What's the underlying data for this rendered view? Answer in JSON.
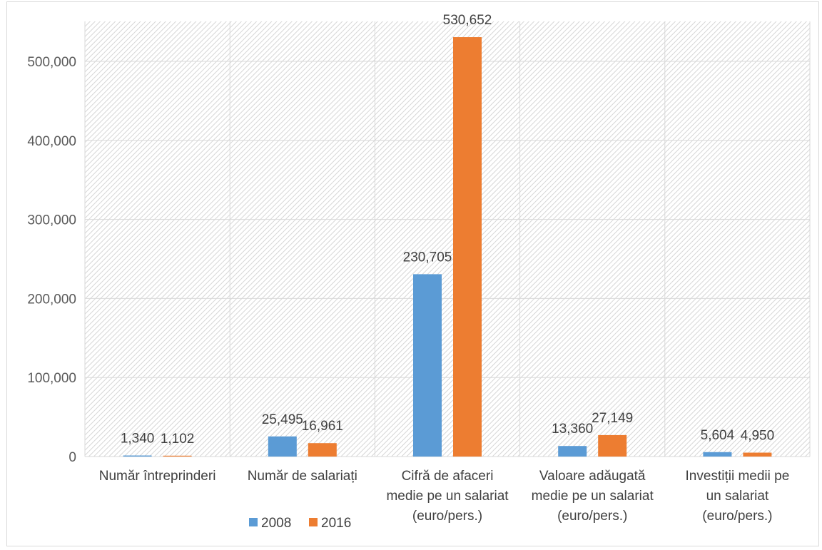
{
  "chart_data": {
    "type": "bar",
    "categories": [
      [
        "Număr întreprinderi"
      ],
      [
        "Număr de salariați"
      ],
      [
        "Cifră de afaceri",
        "medie pe un salariat",
        "(euro/pers.)"
      ],
      [
        "Valoare adăugată",
        "medie pe un salariat",
        "(euro/pers.)"
      ],
      [
        "Investiții medii pe",
        "un salariat",
        "(euro/pers.)"
      ]
    ],
    "series": [
      {
        "name": "2008",
        "color": "#5b9bd5",
        "values": [
          1340,
          25495,
          230705,
          13360,
          5604
        ],
        "labels": [
          "1,340",
          "25,495",
          "230,705",
          "13,360",
          "5,604"
        ]
      },
      {
        "name": "2016",
        "color": "#ed7d31",
        "values": [
          1102,
          16961,
          530652,
          27149,
          4950
        ],
        "labels": [
          "1,102",
          "16,961",
          "530,652",
          "27,149",
          "4,950"
        ]
      }
    ],
    "ylim": [
      0,
      500000
    ],
    "yticks": [
      0,
      100000,
      200000,
      300000,
      400000,
      500000
    ],
    "ytick_labels": [
      "0",
      "100,000",
      "200,000",
      "300,000",
      "400,000",
      "500,000"
    ],
    "grid": true,
    "plot_background": "hatched",
    "legend_position": "bottom",
    "title": "",
    "xlabel": "",
    "ylabel": ""
  }
}
